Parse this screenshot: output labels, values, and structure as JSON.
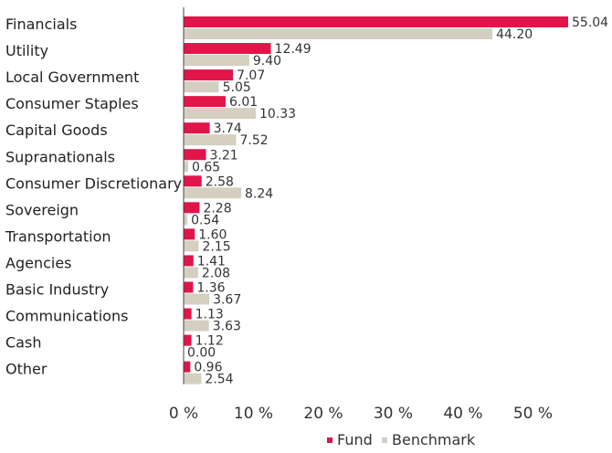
{
  "chart_data": {
    "type": "bar",
    "orientation": "horizontal",
    "categories": [
      "Financials",
      "Utility",
      "Local Government",
      "Consumer Staples",
      "Capital Goods",
      "Supranationals",
      "Consumer Discretionary",
      "Sovereign",
      "Transportation",
      "Agencies",
      "Basic Industry",
      "Communications",
      "Cash",
      "Other"
    ],
    "series": [
      {
        "name": "Fund",
        "color": "#e0154a",
        "values": [
          55.04,
          12.49,
          7.07,
          6.01,
          3.74,
          3.21,
          2.58,
          2.28,
          1.6,
          1.41,
          1.36,
          1.13,
          1.12,
          0.96
        ],
        "labels": [
          "55.04",
          "12.49",
          "7.07",
          "6.01",
          "3.74",
          "3.21",
          "2.58",
          "2.28",
          "1.60",
          "1.41",
          "1.36",
          "1.13",
          "1.12",
          "0.96"
        ]
      },
      {
        "name": "Benchmark",
        "color": "#d5cfc2",
        "values": [
          44.2,
          9.4,
          5.05,
          10.33,
          7.52,
          0.65,
          8.24,
          0.54,
          2.15,
          2.08,
          3.67,
          3.63,
          0.0,
          2.54
        ],
        "labels": [
          "44.20",
          "9.40",
          "5.05",
          "10.33",
          "7.52",
          "0.65",
          "8.24",
          "0.54",
          "2.15",
          "2.08",
          "3.67",
          "3.63",
          "0.00",
          "2.54"
        ]
      }
    ],
    "x_ticks": [
      0,
      10,
      20,
      30,
      40,
      50
    ],
    "x_tick_labels": [
      "0 %",
      "10 %",
      "20 %",
      "30 %",
      "40 %",
      "50 %"
    ],
    "xlim": [
      0,
      56
    ],
    "grid": false,
    "legend_position": "bottom-right",
    "title": "",
    "xlabel": "",
    "ylabel": ""
  }
}
